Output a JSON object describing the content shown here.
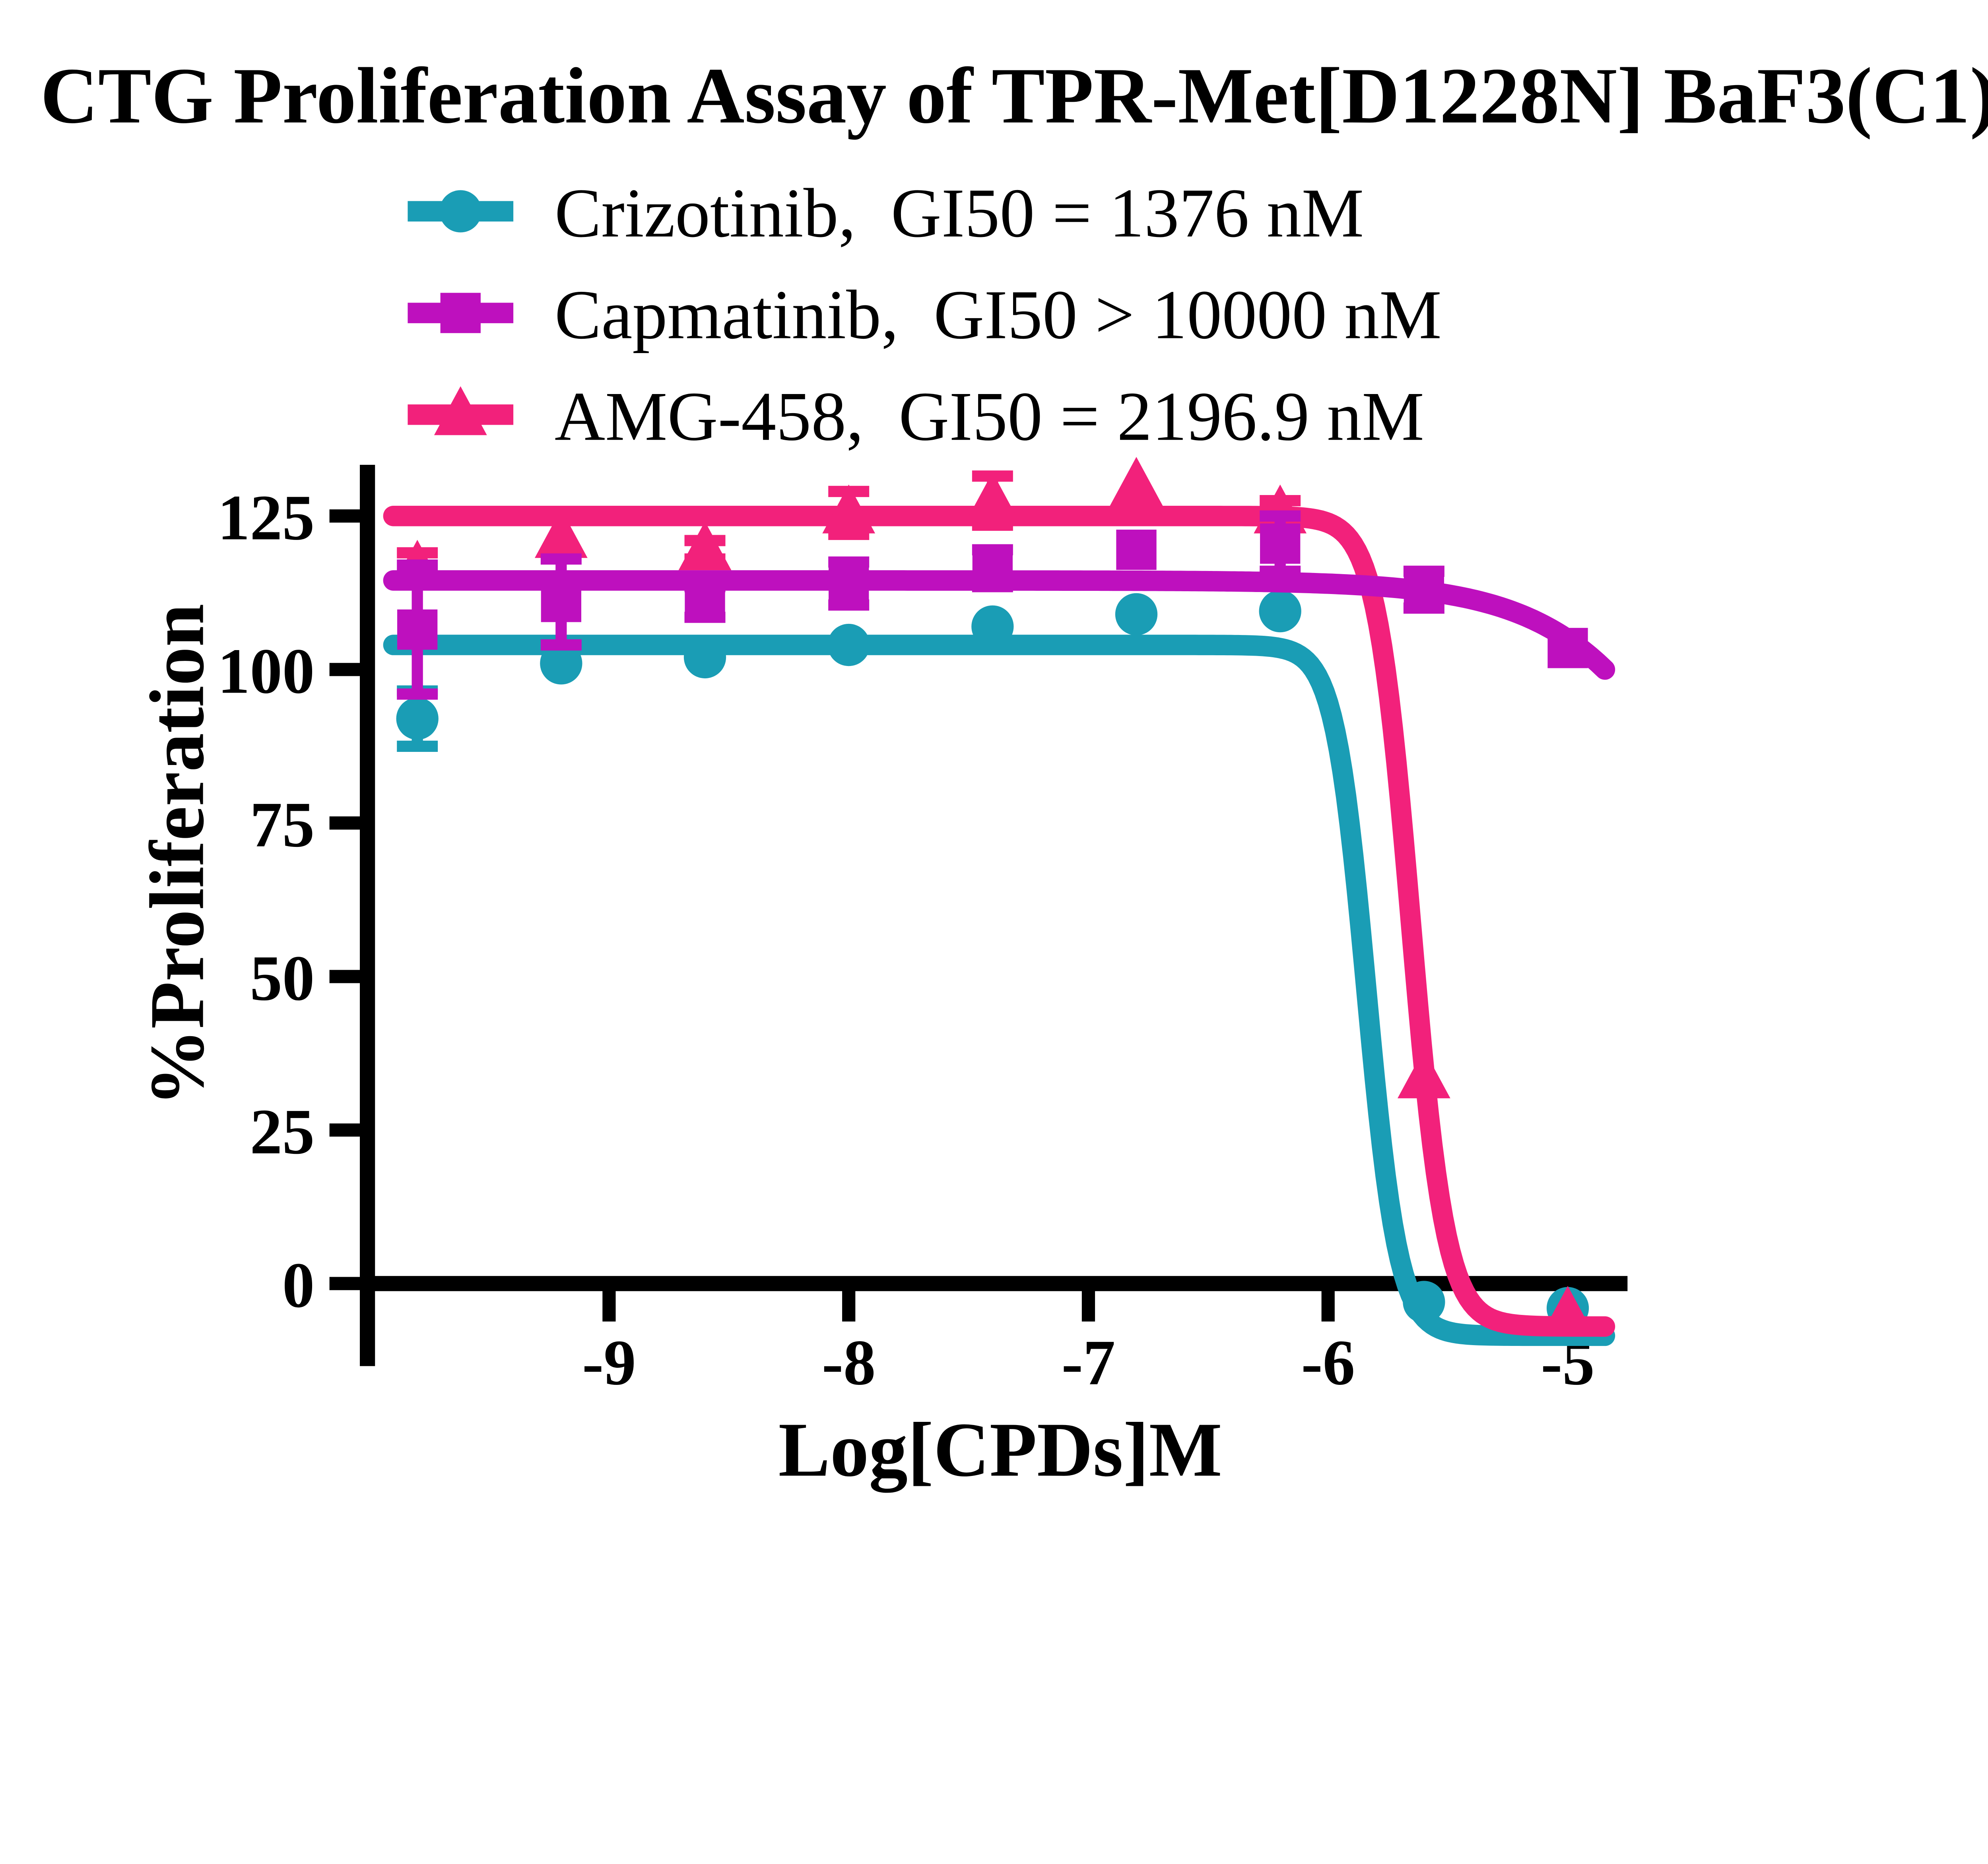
{
  "title": "CTG Proliferation Assay of TPR-Met[D1228N] BaF3(C1)",
  "legend": {
    "position": "top-left",
    "entries": [
      {
        "label": "Crizotinib,  GI50 = 1376 nM",
        "series": "Crizotinib"
      },
      {
        "label": "Capmatinib,  GI50 > 10000 nM",
        "series": "Capmatinib"
      },
      {
        "label": "AMG-458,  GI50 = 2196.9 nM",
        "series": "AMG-458"
      }
    ]
  },
  "colors": {
    "crizotinib": "#1A9DB5",
    "capmatinib": "#BE10BE",
    "amg458": "#F2217B",
    "axis": "#000000",
    "background": "#ffffff"
  },
  "chart_data": {
    "type": "scatter",
    "title": "CTG Proliferation Assay of TPR-Met[D1228N] BaF3(C1)",
    "xlabel": "Log[CPDs]M",
    "ylabel": "%Proliferation",
    "x": [
      -9.8,
      -9.2,
      -8.6,
      -8.0,
      -7.4,
      -6.8,
      -6.2,
      -5.6,
      -5.0
    ],
    "x_ticks": [
      "-9",
      "-8",
      "-7",
      "-6",
      "-5"
    ],
    "x_tick_values": [
      -9,
      -8,
      -7,
      -6,
      -5
    ],
    "y_ticks": [
      "0",
      "25",
      "50",
      "75",
      "100",
      "125"
    ],
    "y_tick_values": [
      0,
      25,
      50,
      75,
      100,
      125
    ],
    "xlim": [
      -10.0,
      -4.6
    ],
    "ylim": [
      -13,
      133
    ],
    "grid": false,
    "legend_position": "top-left",
    "series": [
      {
        "name": "Crizotinib",
        "label": "Crizotinib,  GI50 = 1376 nM",
        "gi50_nM": "1376",
        "marker": "circle",
        "color": "#1A9DB5",
        "values": [
          92,
          101,
          102,
          104,
          107,
          109,
          109.5,
          -3,
          -4
        ],
        "errors": [
          4.5,
          0,
          0,
          0,
          0,
          0,
          0,
          0,
          0
        ],
        "fit": {
          "model": "4PL",
          "top": 104,
          "bottom": -8.5,
          "log_ec50": -5.84,
          "hill": 6.5,
          "x_start": -9.9,
          "x_end": -4.84
        }
      },
      {
        "name": "Capmatinib",
        "label": "Capmatinib,  GI50 > 10000 nM",
        "gi50_nM": "> 10000",
        "marker": "square",
        "color": "#BE10BE",
        "values": [
          106.5,
          111,
          111,
          114,
          116.5,
          119.5,
          120.5,
          113,
          103.5
        ],
        "errors": [
          10.5,
          7,
          2.5,
          3.5,
          3,
          0,
          4.5,
          3,
          0
        ],
        "fit": {
          "model": "4PL",
          "top": 114.5,
          "bottom": 0,
          "log_ec50": -4.2,
          "hill": 1.3,
          "x_start": -9.9,
          "x_end": -4.84
        }
      },
      {
        "name": "AMG-458",
        "label": "AMG-458,  GI50 = 2196.9 nM",
        "gi50_nM": "2196.9",
        "marker": "triangle",
        "color": "#F2217B",
        "values": [
          116.5,
          121.5,
          119.5,
          125.5,
          127.5,
          130,
          125.5,
          33.5,
          -5
        ],
        "errors": [
          2.5,
          0,
          1.5,
          3.5,
          4,
          0,
          2,
          0,
          0
        ],
        "fit": {
          "model": "4PL",
          "top": 125,
          "bottom": -7,
          "log_ec50": -5.655,
          "hill": 6.0,
          "x_start": -9.9,
          "x_end": -4.84
        }
      }
    ]
  }
}
